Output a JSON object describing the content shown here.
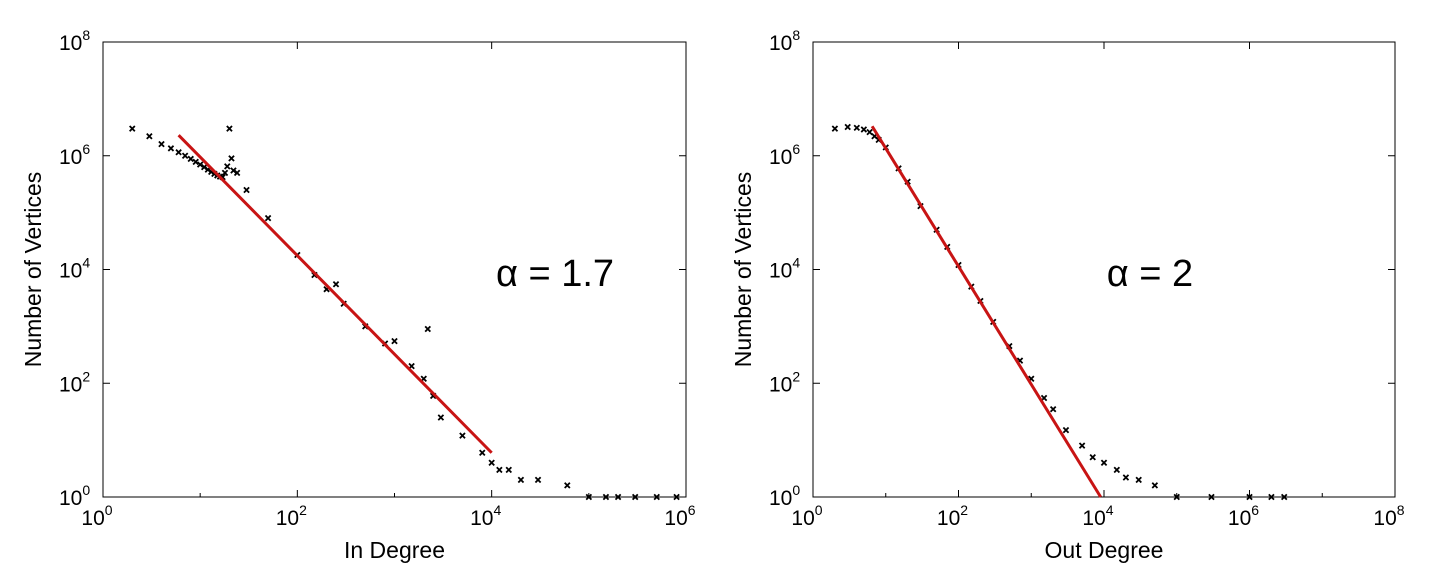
{
  "chart_data": [
    {
      "type": "scatter",
      "title": "",
      "xlabel": "In Degree",
      "ylabel": "Number of Vertices",
      "xscale": "log",
      "yscale": "log",
      "xlim": [
        1,
        1000000
      ],
      "ylim": [
        1,
        100000000
      ],
      "x_tick_exponents": [
        "0",
        "2",
        "4",
        "6"
      ],
      "y_tick_exponents": [
        "0",
        "2",
        "4",
        "6",
        "8"
      ],
      "tick_base": "10",
      "grid": false,
      "annotation": "α = 1.7",
      "marker_color": "#000000",
      "fit_color": "#c81414",
      "fit_line": {
        "alpha": 1.7,
        "x": [
          6,
          10000
        ],
        "y": [
          2300000,
          6
        ]
      },
      "series": [
        {
          "values": [
            [
              2,
              3000000
            ],
            [
              3,
              2200000
            ],
            [
              4,
              1600000
            ],
            [
              5,
              1350000
            ],
            [
              6,
              1150000
            ],
            [
              7,
              1000000
            ],
            [
              8,
              880000
            ],
            [
              9,
              780000
            ],
            [
              10,
              700000
            ],
            [
              11,
              630000
            ],
            [
              12,
              570000
            ],
            [
              13,
              520000
            ],
            [
              14,
              480000
            ],
            [
              15,
              450000
            ],
            [
              16,
              430000
            ],
            [
              17,
              420000
            ],
            [
              18,
              500000
            ],
            [
              19,
              650000
            ],
            [
              20,
              3000000
            ],
            [
              21,
              900000
            ],
            [
              22,
              550000
            ],
            [
              24,
              500000
            ],
            [
              30,
              250000
            ],
            [
              50,
              80000
            ],
            [
              100,
              18000
            ],
            [
              150,
              8000
            ],
            [
              200,
              4500
            ],
            [
              250,
              5500
            ],
            [
              300,
              2500
            ],
            [
              500,
              1000
            ],
            [
              800,
              500
            ],
            [
              1000,
              550
            ],
            [
              1500,
              200
            ],
            [
              2000,
              120
            ],
            [
              2200,
              900
            ],
            [
              2500,
              60
            ],
            [
              3000,
              25
            ],
            [
              5000,
              12
            ],
            [
              8000,
              6
            ],
            [
              10000,
              4
            ],
            [
              12000,
              3
            ],
            [
              15000,
              3
            ],
            [
              20000,
              2
            ],
            [
              30000,
              2
            ],
            [
              60000,
              1.6
            ],
            [
              100000,
              1
            ],
            [
              150000,
              1
            ],
            [
              200000,
              1
            ],
            [
              300000,
              1
            ],
            [
              500000,
              1
            ],
            [
              800000,
              1
            ]
          ]
        }
      ]
    },
    {
      "type": "scatter",
      "title": "",
      "xlabel": "Out Degree",
      "ylabel": "Number of Vertices",
      "xscale": "log",
      "yscale": "log",
      "xlim": [
        1,
        100000000
      ],
      "ylim": [
        1,
        100000000
      ],
      "x_tick_exponents": [
        "0",
        "2",
        "4",
        "6",
        "8"
      ],
      "y_tick_exponents": [
        "0",
        "2",
        "4",
        "6",
        "8"
      ],
      "tick_base": "10",
      "grid": false,
      "annotation": "α = 2",
      "marker_color": "#000000",
      "fit_color": "#c81414",
      "fit_line": {
        "alpha": 2,
        "x": [
          6.5,
          9000
        ],
        "y": [
          3300000,
          1
        ]
      },
      "series": [
        {
          "values": [
            [
              2,
              3000000
            ],
            [
              3,
              3200000
            ],
            [
              4,
              3100000
            ],
            [
              5,
              2900000
            ],
            [
              6,
              2600000
            ],
            [
              7,
              2200000
            ],
            [
              8,
              1900000
            ],
            [
              10,
              1400000
            ],
            [
              15,
              600000
            ],
            [
              20,
              350000
            ],
            [
              30,
              130000
            ],
            [
              50,
              50000
            ],
            [
              70,
              25000
            ],
            [
              100,
              12000
            ],
            [
              150,
              5000
            ],
            [
              200,
              2800
            ],
            [
              300,
              1200
            ],
            [
              500,
              450
            ],
            [
              700,
              250
            ],
            [
              1000,
              120
            ],
            [
              1500,
              55
            ],
            [
              2000,
              35
            ],
            [
              3000,
              15
            ],
            [
              5000,
              8
            ],
            [
              7000,
              5
            ],
            [
              10000,
              4
            ],
            [
              15000,
              3
            ],
            [
              20000,
              2.2
            ],
            [
              30000,
              2
            ],
            [
              50000,
              1.6
            ],
            [
              100000,
              1
            ],
            [
              300000,
              1
            ],
            [
              1000000,
              1
            ],
            [
              2000000,
              1
            ],
            [
              3000000,
              1
            ]
          ]
        }
      ]
    }
  ]
}
